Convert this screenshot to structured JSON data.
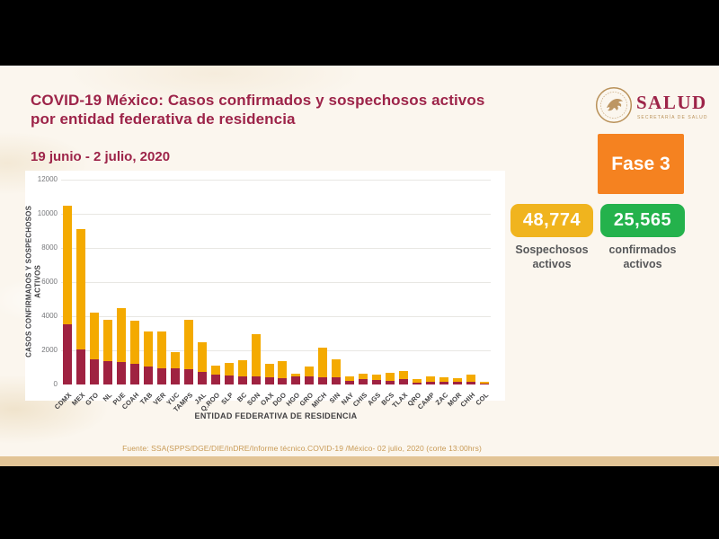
{
  "slide": {
    "title_line1": "COVID-19 México: Casos confirmados y sospechosos activos",
    "title_line2": "por entidad federativa de residencia",
    "date_range": "19 junio - 2 julio, 2020",
    "phase_label": "Fase 3",
    "source": "Fuente: SSA(SPPS/DGE/DIE/InDRE/Informe técnico.COVID-19 /México- 02 julio, 2020 (corte 13:00hrs)"
  },
  "logo": {
    "wordmark": "SALUD",
    "subtitle": "SECRETARÍA DE SALUD"
  },
  "kpis": {
    "suspected": {
      "value": "48,774",
      "label": "Sospechosos activos",
      "color": "#f0b41e"
    },
    "confirmed": {
      "value": "25,565",
      "label": "confirmados activos",
      "color": "#24b24c"
    }
  },
  "colors": {
    "title_maroon": "#9d2449",
    "phase_orange": "#f58220",
    "bar_confirmed": "#9f2241",
    "bar_suspected": "#f4aa00",
    "footer_gold": "#c89a55",
    "band_tan": "#e2c496",
    "slide_cream": "#fbf6ee"
  },
  "chart_data": {
    "type": "bar",
    "stacked": true,
    "title": "",
    "xlabel": "ENTIDAD FEDERATIVA DE RESIDENCIA",
    "ylabel": "CASOS CONFIRMADOS Y SOSPECHOSOS ACTIVOS",
    "ylim": [
      0,
      12000
    ],
    "ytick_interval": 2000,
    "grid": true,
    "legend": false,
    "categories": [
      "CDMX",
      "MEX",
      "GTO",
      "NL",
      "PUE",
      "COAH",
      "TAB",
      "VER",
      "YUC",
      "TAMPS",
      "JAL",
      "Q.ROO",
      "SLP",
      "BC",
      "SON",
      "OAX",
      "DGO",
      "HGO",
      "GRO",
      "MICH",
      "SIN",
      "NAY",
      "CHIS",
      "AGS",
      "BCS",
      "TLAX",
      "QRO",
      "CAMP",
      "ZAC",
      "MOR",
      "CHIH",
      "COL"
    ],
    "series": [
      {
        "name": "confirmados activos",
        "color": "#9f2241",
        "values": [
          3550,
          2070,
          1500,
          1350,
          1300,
          1200,
          1050,
          960,
          960,
          900,
          750,
          570,
          520,
          470,
          460,
          430,
          390,
          450,
          490,
          400,
          430,
          200,
          300,
          250,
          230,
          300,
          125,
          160,
          140,
          180,
          160,
          40
        ]
      },
      {
        "name": "sospechosos activos",
        "color": "#f4aa00",
        "values": [
          6950,
          7030,
          2700,
          2450,
          3150,
          2550,
          2050,
          2140,
          940,
          2900,
          1700,
          530,
          730,
          930,
          2490,
          770,
          960,
          170,
          560,
          1760,
          1060,
          280,
          340,
          320,
          460,
          515,
          175,
          320,
          270,
          175,
          410,
          100
        ]
      }
    ]
  }
}
